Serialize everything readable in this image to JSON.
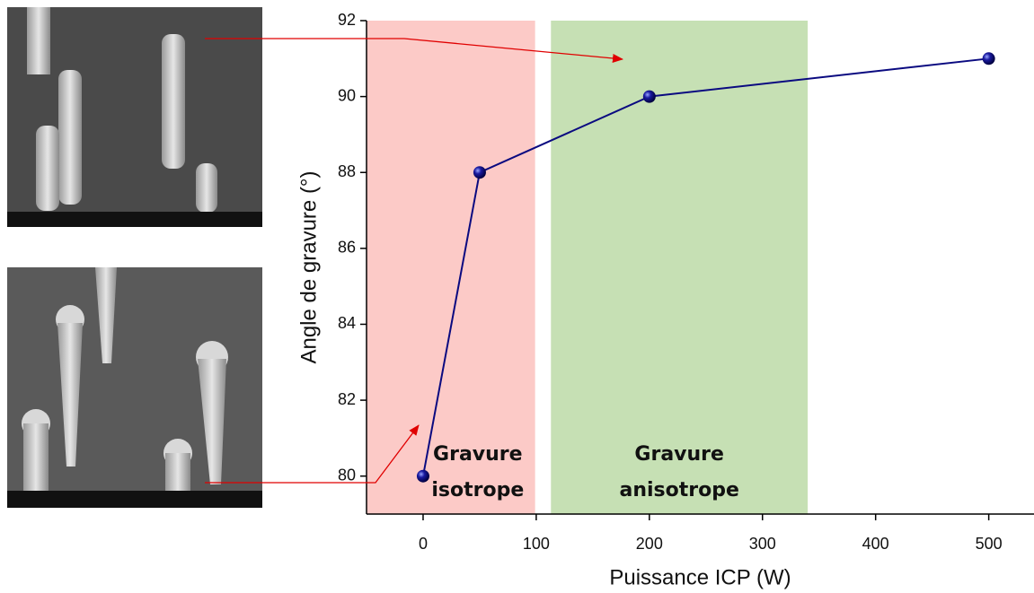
{
  "chart_data": {
    "type": "line",
    "x_label": "Puissance ICP (W)",
    "y_label": "Angle de gravure (°)",
    "xlim": [
      -50,
      540
    ],
    "xticks": [
      0,
      100,
      200,
      300,
      400,
      500
    ],
    "ylim": [
      79,
      92
    ],
    "yticks": [
      80,
      82,
      84,
      86,
      88,
      90,
      92
    ],
    "series": [
      {
        "color": "#0a0a80",
        "x": [
          0,
          50,
          200,
          500
        ],
        "values": [
          80,
          88,
          90,
          91
        ]
      }
    ],
    "bands": [
      {
        "x": [
          -50,
          99
        ],
        "color": "#fccac7",
        "label": [
          "Gravure",
          "isotrope"
        ]
      },
      {
        "x": [
          113,
          340
        ],
        "color": "#c6e0b4",
        "label": [
          "Gravure",
          "anisotrope"
        ]
      }
    ]
  }
}
